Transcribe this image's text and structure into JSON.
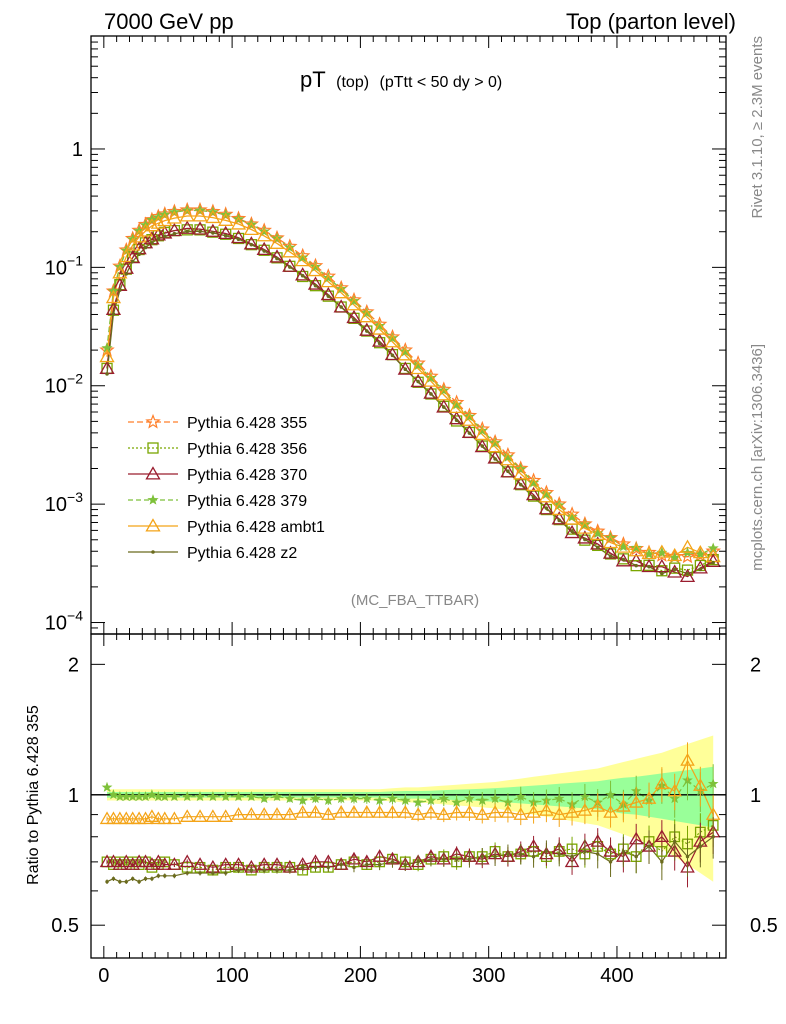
{
  "header": {
    "left": "7000 GeV pp",
    "right": "Top (parton level)"
  },
  "side_labels": {
    "rivet": "Rivet 3.1.10, ≥ 2.3M events",
    "mcplots": "mcplots.cern.ch [arXiv:1306.3436]"
  },
  "analysis_tag": "(MC_FBA_TTBAR)",
  "chart_data": [
    {
      "type": "line",
      "panel": "main",
      "title_main": "pT",
      "title_sub1": "(top)",
      "title_sub2": "(pTtt < 50 dy > 0)",
      "xlim": [
        -10,
        485
      ],
      "ylim": [
        8e-05,
        9
      ],
      "yscale": "log",
      "ytick_values": [
        0.0001,
        0.001,
        0.01,
        0.1,
        1
      ],
      "ytick_labels": [
        {
          "base": "10",
          "exp": "−4"
        },
        {
          "base": "10",
          "exp": "−3"
        },
        {
          "base": "10",
          "exp": "−2"
        },
        {
          "base": "10",
          "exp": "−1"
        },
        {
          "base": "1",
          "exp": ""
        }
      ],
      "x": [
        2.5,
        7.5,
        12.5,
        17.5,
        22.5,
        27.5,
        32.5,
        37.5,
        42.5,
        47.5,
        55,
        65,
        75,
        85,
        95,
        105,
        115,
        125,
        135,
        145,
        155,
        165,
        175,
        185,
        195,
        205,
        215,
        225,
        235,
        245,
        255,
        265,
        275,
        285,
        295,
        305,
        315,
        325,
        335,
        345,
        355,
        365,
        375,
        385,
        395,
        405,
        415,
        425,
        435,
        445,
        455,
        465,
        475
      ],
      "reference": [
        0.02,
        0.063,
        0.102,
        0.14,
        0.175,
        0.205,
        0.23,
        0.252,
        0.268,
        0.282,
        0.296,
        0.305,
        0.305,
        0.296,
        0.28,
        0.258,
        0.232,
        0.205,
        0.177,
        0.15,
        0.125,
        0.103,
        0.084,
        0.067,
        0.053,
        0.042,
        0.033,
        0.0258,
        0.02,
        0.0155,
        0.012,
        0.0093,
        0.0072,
        0.0056,
        0.0043,
        0.00335,
        0.0026,
        0.002,
        0.00158,
        0.00125,
        0.001,
        0.00082,
        0.00068,
        0.00059,
        0.00052,
        0.00046,
        0.00042,
        0.00039,
        0.00037,
        0.00036,
        0.00036,
        0.00037,
        0.0004
      ],
      "series": [
        {
          "name": "Pythia 6.428 355",
          "color": "#ff7f2a",
          "dash": "6,3",
          "marker": "star-open",
          "ratio": [
            1.0,
            1.0,
            1.0,
            1.0,
            1.0,
            1.0,
            1.0,
            1.0,
            1.0,
            1.0,
            1.0,
            1.0,
            1.0,
            1.0,
            1.0,
            1.0,
            1.0,
            1.0,
            1.0,
            1.0,
            1.0,
            1.0,
            1.0,
            1.0,
            1.0,
            1.0,
            1.0,
            1.0,
            1.0,
            1.0,
            1.0,
            1.0,
            1.0,
            1.0,
            1.0,
            1.0,
            1.0,
            1.0,
            1.0,
            1.0,
            1.0,
            1.0,
            1.0,
            1.0,
            1.0,
            1.0,
            1.0,
            1.0,
            1.0,
            1.0,
            1.0,
            1.0,
            1.0
          ]
        },
        {
          "name": "Pythia 6.428 356",
          "color": "#7aa600",
          "dash": "2,2",
          "marker": "square-open",
          "ratio": [
            0.7,
            0.69,
            0.7,
            0.69,
            0.7,
            0.69,
            0.7,
            0.68,
            0.69,
            0.7,
            0.69,
            0.68,
            0.68,
            0.67,
            0.68,
            0.68,
            0.67,
            0.68,
            0.68,
            0.68,
            0.67,
            0.68,
            0.68,
            0.69,
            0.7,
            0.69,
            0.7,
            0.71,
            0.7,
            0.69,
            0.71,
            0.72,
            0.7,
            0.72,
            0.72,
            0.74,
            0.72,
            0.73,
            0.74,
            0.72,
            0.74,
            0.75,
            0.73,
            0.76,
            0.73,
            0.75,
            0.72,
            0.78,
            0.74,
            0.8,
            0.77,
            0.82,
            0.85
          ]
        },
        {
          "name": "Pythia 6.428 370",
          "color": "#9a1d2f",
          "dash": "",
          "marker": "triangle-open",
          "ratio": [
            0.7,
            0.7,
            0.69,
            0.7,
            0.69,
            0.7,
            0.7,
            0.69,
            0.7,
            0.69,
            0.69,
            0.7,
            0.69,
            0.68,
            0.69,
            0.69,
            0.68,
            0.69,
            0.69,
            0.68,
            0.69,
            0.7,
            0.7,
            0.69,
            0.71,
            0.7,
            0.72,
            0.71,
            0.69,
            0.7,
            0.72,
            0.71,
            0.73,
            0.72,
            0.71,
            0.73,
            0.72,
            0.74,
            0.76,
            0.73,
            0.75,
            0.7,
            0.76,
            0.78,
            0.74,
            0.72,
            0.79,
            0.76,
            0.8,
            0.74,
            0.68,
            0.78,
            0.82
          ]
        },
        {
          "name": "Pythia 6.428 379",
          "color": "#7ec13a",
          "dash": "5,3",
          "marker": "star-filled",
          "ratio": [
            1.04,
            1.0,
            0.99,
            0.99,
            0.99,
            0.99,
            0.99,
            1.0,
            0.99,
            0.99,
            0.99,
            0.99,
            0.99,
            0.99,
            0.99,
            0.99,
            0.99,
            0.98,
            0.99,
            0.98,
            0.97,
            0.98,
            0.97,
            0.98,
            0.98,
            0.98,
            0.97,
            0.98,
            0.97,
            0.96,
            0.97,
            0.98,
            0.96,
            0.98,
            0.97,
            0.98,
            0.96,
            0.99,
            0.96,
            0.97,
            0.98,
            0.95,
            0.99,
            0.96,
            1.0,
            0.95,
            1.02,
            0.97,
            1.05,
            0.98,
            1.08,
            1.02,
            1.06
          ]
        },
        {
          "name": "Pythia 6.428 ambt1",
          "color": "#f4a418",
          "dash": "",
          "marker": "triangle-open",
          "ratio": [
            0.88,
            0.88,
            0.88,
            0.88,
            0.88,
            0.88,
            0.88,
            0.89,
            0.88,
            0.88,
            0.88,
            0.89,
            0.89,
            0.89,
            0.89,
            0.9,
            0.9,
            0.9,
            0.9,
            0.9,
            0.91,
            0.91,
            0.9,
            0.91,
            0.91,
            0.91,
            0.91,
            0.91,
            0.91,
            0.9,
            0.91,
            0.9,
            0.91,
            0.91,
            0.9,
            0.91,
            0.91,
            0.9,
            0.91,
            0.92,
            0.9,
            0.91,
            0.92,
            0.94,
            0.91,
            0.94,
            0.96,
            0.98,
            1.06,
            1.02,
            1.2,
            1.05,
            0.9
          ]
        },
        {
          "name": "Pythia 6.428 z2",
          "color": "#6b6b1e",
          "dash": "",
          "marker": "dot",
          "ratio": [
            0.63,
            0.64,
            0.63,
            0.63,
            0.64,
            0.63,
            0.64,
            0.64,
            0.65,
            0.65,
            0.65,
            0.66,
            0.66,
            0.66,
            0.66,
            0.67,
            0.67,
            0.67,
            0.67,
            0.67,
            0.68,
            0.68,
            0.68,
            0.69,
            0.68,
            0.69,
            0.69,
            0.7,
            0.69,
            0.7,
            0.71,
            0.71,
            0.71,
            0.71,
            0.72,
            0.72,
            0.73,
            0.73,
            0.72,
            0.74,
            0.73,
            0.72,
            0.74,
            0.73,
            0.7,
            0.74,
            0.72,
            0.76,
            0.7,
            0.78,
            0.72,
            0.76,
            0.8
          ]
        }
      ]
    },
    {
      "type": "line",
      "panel": "ratio",
      "ylabel": "Ratio to Pythia 6.428 355",
      "xlim": [
        -10,
        485
      ],
      "ylim": [
        0.42,
        2.35
      ],
      "yscale": "log",
      "ytick_values": [
        0.5,
        1,
        2
      ],
      "ytick_labels": [
        "0.5",
        "1",
        "2"
      ],
      "xtick_values": [
        0,
        100,
        200,
        300,
        400
      ],
      "xtick_labels": [
        "0",
        "100",
        "200",
        "300",
        "400"
      ],
      "band_yellow_halfwidth": [
        0.03,
        0.03,
        0.03,
        0.03,
        0.03,
        0.03,
        0.03,
        0.03,
        0.03,
        0.03,
        0.03,
        0.03,
        0.03,
        0.03,
        0.03,
        0.03,
        0.03,
        0.03,
        0.03,
        0.03,
        0.03,
        0.03,
        0.03,
        0.03,
        0.03,
        0.03,
        0.03,
        0.035,
        0.04,
        0.04,
        0.045,
        0.05,
        0.055,
        0.06,
        0.065,
        0.07,
        0.08,
        0.09,
        0.1,
        0.11,
        0.12,
        0.13,
        0.14,
        0.15,
        0.17,
        0.19,
        0.21,
        0.23,
        0.25,
        0.28,
        0.31,
        0.34,
        0.37
      ],
      "band_green_halfwidth": [
        0.015,
        0.015,
        0.015,
        0.015,
        0.015,
        0.015,
        0.015,
        0.015,
        0.015,
        0.015,
        0.015,
        0.015,
        0.015,
        0.015,
        0.015,
        0.015,
        0.015,
        0.015,
        0.015,
        0.015,
        0.015,
        0.015,
        0.015,
        0.015,
        0.015,
        0.015,
        0.015,
        0.018,
        0.02,
        0.02,
        0.022,
        0.025,
        0.028,
        0.03,
        0.033,
        0.036,
        0.04,
        0.045,
        0.05,
        0.055,
        0.06,
        0.065,
        0.07,
        0.075,
        0.085,
        0.095,
        0.1,
        0.11,
        0.12,
        0.13,
        0.14,
        0.15,
        0.16
      ]
    }
  ]
}
